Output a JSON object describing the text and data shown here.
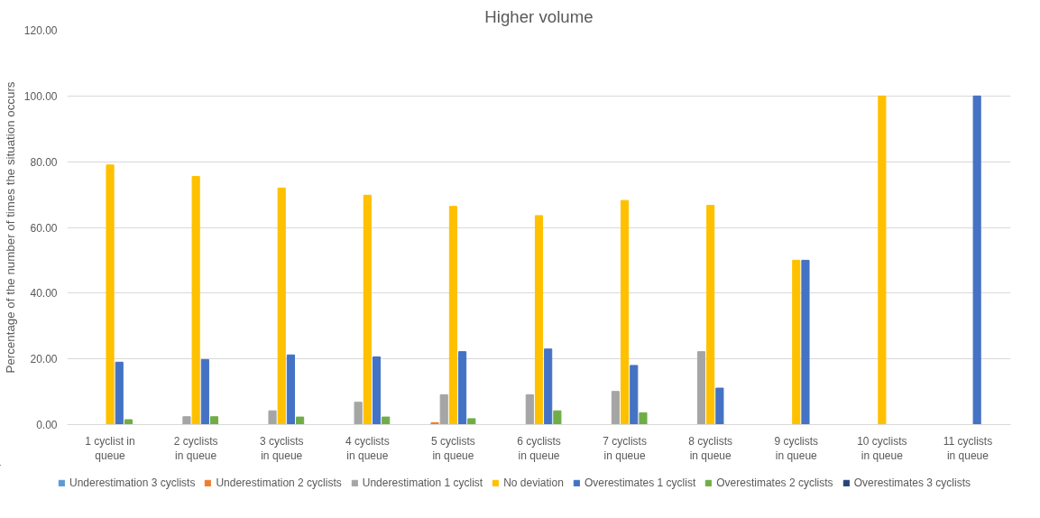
{
  "chart_data": {
    "type": "bar",
    "title": "Higher volume",
    "ylabel": "Percentage of the number of times the situation occurs",
    "categories": [
      "1 cyclist in queue",
      "2 cyclists in queue",
      "3 cyclists in queue",
      "4 cyclists in queue",
      "5 cyclists in queue",
      "6 cyclists in queue",
      "7 cyclists in queue",
      "8 cyclists in queue",
      "9 cyclists in queue",
      "10 cyclists in queue",
      "11 cyclists in queue"
    ],
    "series": [
      {
        "name": "Underestimation 3 cyclists",
        "color": "#5b9bd5",
        "values": [
          0,
          0,
          0,
          0,
          0,
          0,
          0,
          0,
          0,
          0,
          0
        ]
      },
      {
        "name": "Underestimation 2 cyclists",
        "color": "#ed7d31",
        "values": [
          0,
          0,
          0,
          0,
          0.6,
          0,
          0,
          0,
          0,
          0,
          0
        ]
      },
      {
        "name": "Underestimation 1 cyclist",
        "color": "#a5a5a5",
        "values": [
          0,
          2.4,
          4.2,
          6.8,
          9.1,
          9.1,
          10.1,
          22.2,
          0,
          0,
          0
        ]
      },
      {
        "name": "No deviation",
        "color": "#ffc000",
        "values": [
          79.0,
          75.5,
          72.0,
          69.8,
          66.4,
          63.6,
          68.2,
          66.7,
          50.0,
          100.0,
          0
        ]
      },
      {
        "name": "Overestimates 1 cyclist",
        "color": "#4472c4",
        "values": [
          19.0,
          19.8,
          21.2,
          20.6,
          22.2,
          23.0,
          18.0,
          11.1,
          50.0,
          0,
          100.0
        ]
      },
      {
        "name": "Overestimates 2 cyclists",
        "color": "#70ad47",
        "values": [
          1.5,
          2.4,
          2.3,
          2.3,
          1.8,
          4.2,
          3.6,
          0,
          0,
          0,
          0
        ]
      },
      {
        "name": "Overestimates 3 cyclists",
        "color": "#264478",
        "values": [
          0,
          0,
          0,
          0,
          0,
          0,
          0,
          0,
          0,
          0,
          0
        ]
      }
    ],
    "ylim": [
      0,
      120
    ],
    "yticks": [
      {
        "value": 0,
        "label": "0.00"
      },
      {
        "value": 20,
        "label": "20.00"
      },
      {
        "value": 40,
        "label": "40.00"
      },
      {
        "value": 60,
        "label": "60.00"
      },
      {
        "value": 80,
        "label": "80.00"
      },
      {
        "value": 100,
        "label": "100.00"
      },
      {
        "value": 120,
        "label": "120.00"
      }
    ],
    "grid": "y",
    "legend": "bottom"
  }
}
